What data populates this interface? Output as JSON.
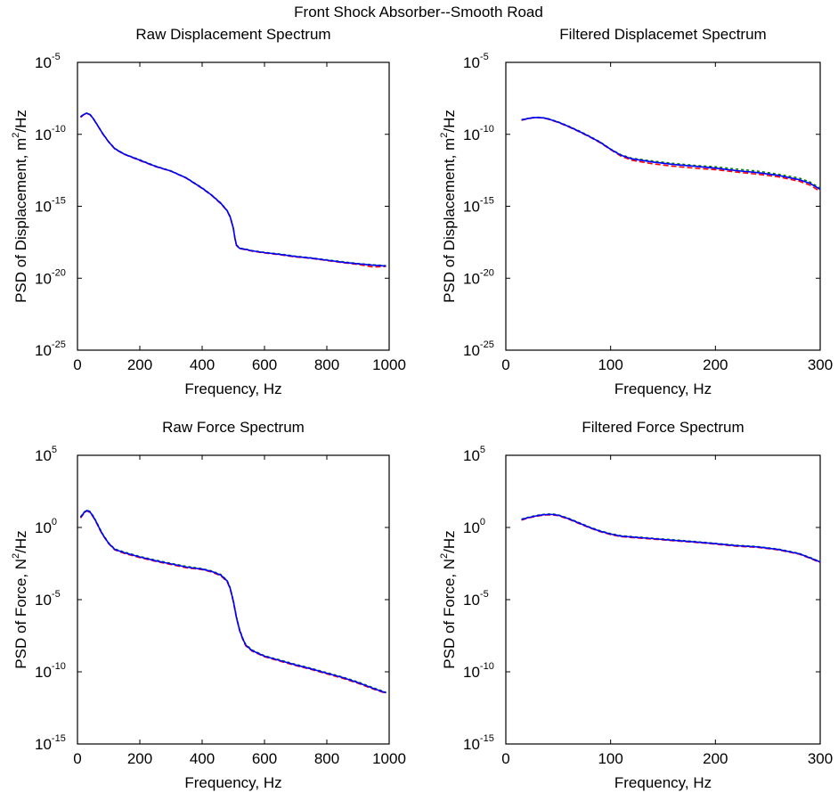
{
  "figure": {
    "suptitle": "Front Shock Absorber--Smooth Road"
  },
  "colors": {
    "series_red": "#ff0000",
    "series_green": "#008000",
    "series_blue": "#0000ff",
    "axes": "#000000",
    "background": "#ffffff"
  },
  "chart_data": [
    {
      "type": "line",
      "title": "Raw Displacement Spectrum",
      "xlabel": "Frequency, Hz",
      "ylabel": "PSD of Displacement, m^2/Hz",
      "ylabel_base": "PSD of Displacement, m",
      "ylabel_sup": "2",
      "ylabel_tail": "/Hz",
      "xlim": [
        0,
        1000
      ],
      "ylim": [
        1e-25,
        1e-05
      ],
      "yscale": "log",
      "grid": false,
      "xticks": [
        0,
        200,
        400,
        600,
        800,
        1000
      ],
      "xtick_labels": [
        "0",
        "200",
        "400",
        "600",
        "800",
        "1000"
      ],
      "yticks_exp": [
        -25,
        -20,
        -15,
        -10,
        -5
      ],
      "ytick_base": "10",
      "ytick_exp_labels": [
        "-25",
        "-20",
        "-15",
        "-10",
        "-5"
      ],
      "x": [
        10,
        20,
        30,
        40,
        50,
        60,
        70,
        80,
        100,
        120,
        150,
        200,
        250,
        300,
        350,
        400,
        430,
        460,
        480,
        490,
        500,
        505,
        510,
        520,
        540,
        560,
        600,
        650,
        700,
        750,
        800,
        850,
        900,
        950,
        990
      ],
      "series": [
        {
          "color": "blue",
          "values": [
            1.6e-09,
            2.4e-09,
            2.9e-09,
            2.4e-09,
            1.3e-09,
            6e-10,
            2.7e-10,
            1.2e-10,
            3e-11,
            1e-11,
            4.2e-12,
            1.6e-12,
            6e-13,
            2.8e-13,
            9e-14,
            1.8e-14,
            6e-15,
            1.6e-15,
            5e-16,
            1.8e-16,
            3e-17,
            6e-18,
            2e-18,
            1.2e-18,
            1e-18,
            8e-19,
            6e-19,
            4.5e-19,
            3.2e-19,
            2.5e-19,
            1.8e-19,
            1.3e-19,
            1e-19,
            8e-20,
            7e-20
          ]
        },
        {
          "color": "green",
          "values": [
            1.7e-09,
            2.5e-09,
            3e-09,
            2.5e-09,
            1.35e-09,
            6.2e-10,
            2.8e-10,
            1.25e-10,
            3.1e-11,
            1.05e-11,
            4.3e-12,
            1.7e-12,
            6.3e-13,
            2.9e-13,
            9.3e-14,
            1.9e-14,
            6.2e-15,
            1.7e-15,
            5.2e-16,
            1.9e-16,
            3.1e-17,
            6.2e-18,
            2.1e-18,
            1.25e-18,
            1.05e-18,
            8.4e-19,
            6.3e-19,
            4.8e-19,
            3.4e-19,
            2.6e-19,
            1.9e-19,
            1.4e-19,
            1.05e-19,
            8.5e-20,
            7.4e-20
          ]
        },
        {
          "color": "red",
          "values": [
            1.5e-09,
            2.3e-09,
            2.8e-09,
            2.3e-09,
            1.25e-09,
            5.8e-10,
            2.6e-10,
            1.15e-10,
            2.9e-11,
            9.5e-12,
            4e-12,
            1.5e-12,
            5.7e-13,
            2.7e-13,
            8.7e-14,
            1.7e-14,
            5.8e-15,
            1.5e-15,
            4.8e-16,
            1.7e-16,
            2.9e-17,
            5.8e-18,
            1.9e-18,
            1.15e-18,
            9.5e-19,
            7.6e-19,
            5.7e-19,
            4.2e-19,
            3e-19,
            2.4e-19,
            1.7e-19,
            1.2e-19,
            9e-20,
            6e-20,
            6.6e-20
          ]
        }
      ]
    },
    {
      "type": "line",
      "title": "Filtered Displacemet Spectrum",
      "xlabel": "Frequency, Hz",
      "ylabel": "PSD of Displacement, m^2/Hz",
      "ylabel_base": "PSD of Displacement, m",
      "ylabel_sup": "2",
      "ylabel_tail": "/Hz",
      "xlim": [
        0,
        300
      ],
      "ylim": [
        1e-25,
        1e-05
      ],
      "yscale": "log",
      "grid": false,
      "xticks": [
        0,
        100,
        200,
        300
      ],
      "xtick_labels": [
        "0",
        "100",
        "200",
        "300"
      ],
      "yticks_exp": [
        -25,
        -20,
        -15,
        -10,
        -5
      ],
      "ytick_base": "10",
      "ytick_exp_labels": [
        "-25",
        "-20",
        "-15",
        "-10",
        "-5"
      ],
      "x": [
        15,
        20,
        25,
        30,
        35,
        40,
        50,
        60,
        70,
        80,
        90,
        100,
        110,
        120,
        140,
        160,
        180,
        200,
        220,
        240,
        260,
        280,
        290,
        300
      ],
      "series": [
        {
          "color": "blue",
          "values": [
            1e-09,
            1.2e-09,
            1.4e-09,
            1.5e-09,
            1.4e-09,
            1.2e-09,
            7e-10,
            3.5e-10,
            1.6e-10,
            7e-11,
            2.8e-11,
            9e-12,
            3.5e-12,
            2e-12,
            1.2e-12,
            8e-13,
            6e-13,
            4.5e-13,
            3e-13,
            2.2e-13,
            1.4e-13,
            7e-14,
            4e-14,
            1.5e-14
          ]
        },
        {
          "color": "green",
          "values": [
            1.05e-09,
            1.25e-09,
            1.45e-09,
            1.55e-09,
            1.45e-09,
            1.25e-09,
            7.3e-10,
            3.7e-10,
            1.7e-10,
            7.4e-11,
            3e-11,
            9.5e-12,
            3.8e-12,
            2.2e-12,
            1.4e-12,
            9.5e-13,
            7e-13,
            5.5e-13,
            3.8e-13,
            2.8e-13,
            1.7e-13,
            9e-14,
            5e-14,
            1.8e-14
          ]
        },
        {
          "color": "red",
          "values": [
            9.5e-10,
            1.15e-09,
            1.35e-09,
            1.45e-09,
            1.35e-09,
            1.15e-09,
            6.7e-10,
            3.3e-10,
            1.5e-10,
            6.6e-11,
            2.6e-11,
            8.5e-12,
            3e-12,
            1.6e-12,
            9e-13,
            6e-13,
            4.5e-13,
            3.5e-13,
            2.4e-13,
            1.7e-13,
            1.1e-13,
            5.5e-14,
            3e-14,
            1.1e-14
          ]
        }
      ]
    },
    {
      "type": "line",
      "title": "Raw Force Spectrum",
      "xlabel": "Frequency, Hz",
      "ylabel": "PSD of Force, N^2/Hz",
      "ylabel_base": "PSD of Force, N",
      "ylabel_sup": "2",
      "ylabel_tail": "/Hz",
      "xlim": [
        0,
        1000
      ],
      "ylim": [
        1e-15,
        100000.0
      ],
      "yscale": "log",
      "grid": false,
      "xticks": [
        0,
        200,
        400,
        600,
        800,
        1000
      ],
      "xtick_labels": [
        "0",
        "200",
        "400",
        "600",
        "800",
        "1000"
      ],
      "yticks_exp": [
        -15,
        -10,
        -5,
        0,
        5
      ],
      "ytick_base": "10",
      "ytick_exp_labels": [
        "-15",
        "-10",
        "-5",
        "0",
        "5"
      ],
      "x": [
        10,
        20,
        30,
        40,
        50,
        60,
        70,
        80,
        100,
        120,
        150,
        200,
        250,
        300,
        350,
        400,
        430,
        460,
        480,
        490,
        500,
        510,
        520,
        530,
        540,
        560,
        600,
        650,
        700,
        750,
        800,
        850,
        900,
        950,
        990
      ],
      "series": [
        {
          "color": "blue",
          "values": [
            5,
            10,
            15,
            12,
            6,
            2.5,
            0.9,
            0.35,
            0.08,
            0.03,
            0.018,
            0.009,
            0.005,
            0.003,
            0.0018,
            0.0013,
            0.0009,
            0.0005,
            0.0002,
            6e-05,
            8e-06,
            6e-07,
            8e-08,
            2e-08,
            7e-09,
            3e-09,
            1.2e-09,
            6e-10,
            3e-10,
            1.6e-10,
            8e-11,
            4e-11,
            1.8e-11,
            7e-12,
            3.5e-12
          ]
        },
        {
          "color": "green",
          "values": [
            5.5,
            11,
            16,
            13,
            6.5,
            2.7,
            1,
            0.38,
            0.085,
            0.032,
            0.02,
            0.0098,
            0.0055,
            0.0033,
            0.002,
            0.0014,
            0.00098,
            0.00055,
            0.00022,
            6.6e-05,
            8.8e-06,
            6.6e-07,
            8.8e-08,
            2.2e-08,
            7.7e-09,
            3.3e-09,
            1.3e-09,
            6.6e-10,
            3.3e-10,
            1.75e-10,
            8.8e-11,
            4.4e-11,
            2e-11,
            7.7e-12,
            3.8e-12
          ]
        },
        {
          "color": "red",
          "values": [
            4.5,
            9,
            14,
            11,
            5.5,
            2.3,
            0.82,
            0.32,
            0.075,
            0.028,
            0.016,
            0.0082,
            0.0045,
            0.0027,
            0.0016,
            0.0012,
            0.00082,
            0.00045,
            0.00018,
            5.4e-05,
            7.2e-06,
            5.4e-07,
            7.2e-08,
            1.8e-08,
            6.3e-09,
            2.7e-09,
            1.1e-09,
            5.4e-10,
            2.7e-10,
            1.45e-10,
            7.2e-11,
            3.6e-11,
            1.6e-11,
            6.3e-12,
            3.2e-12
          ]
        }
      ]
    },
    {
      "type": "line",
      "title": "Filtered Force Spectrum",
      "xlabel": "Frequency, Hz",
      "ylabel": "PSD of Force, N^2/Hz",
      "ylabel_base": "PSD of Force, N",
      "ylabel_sup": "2",
      "ylabel_tail": "/Hz",
      "xlim": [
        0,
        300
      ],
      "ylim": [
        1e-15,
        100000.0
      ],
      "yscale": "log",
      "grid": false,
      "xticks": [
        0,
        100,
        200,
        300
      ],
      "xtick_labels": [
        "0",
        "100",
        "200",
        "300"
      ],
      "yticks_exp": [
        -15,
        -10,
        -5,
        0,
        5
      ],
      "ytick_base": "10",
      "ytick_exp_labels": [
        "-15",
        "-10",
        "-5",
        "0",
        "5"
      ],
      "x": [
        15,
        20,
        25,
        30,
        35,
        40,
        45,
        50,
        60,
        70,
        80,
        90,
        100,
        110,
        120,
        140,
        160,
        180,
        200,
        220,
        240,
        260,
        280,
        290,
        300
      ],
      "series": [
        {
          "color": "blue",
          "values": [
            3.5,
            4.5,
            5.5,
            6.5,
            7.5,
            8,
            8,
            7,
            4,
            2,
            1,
            0.55,
            0.35,
            0.25,
            0.22,
            0.17,
            0.13,
            0.1,
            0.075,
            0.055,
            0.045,
            0.03,
            0.015,
            0.008,
            0.004
          ]
        },
        {
          "color": "green",
          "values": [
            3.8,
            4.8,
            5.9,
            7,
            8,
            8.6,
            8.6,
            7.5,
            4.3,
            2.15,
            1.07,
            0.59,
            0.375,
            0.27,
            0.235,
            0.18,
            0.14,
            0.107,
            0.08,
            0.059,
            0.048,
            0.032,
            0.016,
            0.0086,
            0.0043
          ]
        },
        {
          "color": "red",
          "values": [
            3.2,
            4.2,
            5.1,
            6,
            7,
            7.4,
            7.4,
            6.5,
            3.7,
            1.85,
            0.93,
            0.51,
            0.32,
            0.23,
            0.2,
            0.155,
            0.12,
            0.093,
            0.07,
            0.05,
            0.042,
            0.028,
            0.014,
            0.0074,
            0.0037
          ]
        }
      ]
    }
  ]
}
